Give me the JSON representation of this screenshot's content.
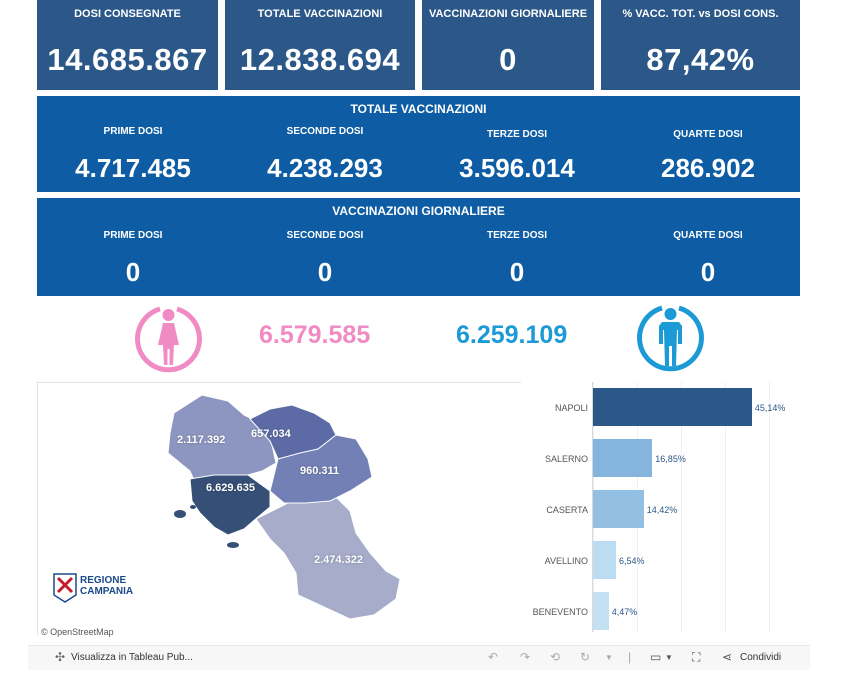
{
  "tiles": [
    {
      "label": "DOSI  CONSEGNATE",
      "value": "14.685.867"
    },
    {
      "label": "TOTALE VACCINAZIONI",
      "value": "12.838.694"
    },
    {
      "label": "VACCINAZIONI GIORNALIERE",
      "value": "0"
    },
    {
      "label": "% VACC. TOT. vs DOSI CONS.",
      "value": "87,42%"
    }
  ],
  "totale": {
    "title": "TOTALE VACCINAZIONI",
    "cols": [
      {
        "label": "PRIME DOSI",
        "value": "4.717.485"
      },
      {
        "label": "SECONDE DOSI",
        "value": "4.238.293"
      },
      {
        "label": "TERZE DOSI",
        "value": "3.596.014"
      },
      {
        "label": "QUARTE DOSI",
        "value": "286.902"
      }
    ]
  },
  "giornaliere": {
    "title": "VACCINAZIONI GIORNALIERE",
    "cols": [
      {
        "label": "PRIME DOSI",
        "value": "0"
      },
      {
        "label": "SECONDE DOSI",
        "value": "0"
      },
      {
        "label": "TERZE DOSI",
        "value": "0"
      },
      {
        "label": "QUARTE DOSI",
        "value": "0"
      }
    ]
  },
  "gender": {
    "female_value": "6.579.585",
    "male_value": "6.259.109",
    "female_color": "#f08bc4",
    "male_color": "#1b9ad6",
    "female_icon": "female-icon",
    "male_icon": "male-icon"
  },
  "map": {
    "regions": [
      {
        "name": "caserta",
        "value": "2.117.392"
      },
      {
        "name": "benevento",
        "value": "657.034"
      },
      {
        "name": "avellino",
        "value": "960.311"
      },
      {
        "name": "napoli",
        "value": "6.629.635"
      },
      {
        "name": "salerno",
        "value": "2.474.322"
      }
    ],
    "logo_line1": "REGIONE",
    "logo_line2": "CAMPANIA",
    "attribution": "© OpenStreetMap"
  },
  "chart_data": {
    "type": "bar",
    "orientation": "horizontal",
    "categories": [
      "NAPOLI",
      "SALERNO",
      "CASERTA",
      "AVELLINO",
      "BENEVENTO"
    ],
    "values": [
      45.14,
      16.85,
      14.42,
      6.54,
      4.47
    ],
    "labels": [
      "45,14%",
      "16,85%",
      "14,42%",
      "6,54%",
      "4,47%"
    ],
    "colors": [
      "#2b5888",
      "#85b5df",
      "#93bfe2",
      "#bcdcf1",
      "#c4e1f3"
    ],
    "xlim": [
      0,
      50
    ]
  },
  "toolbar": {
    "view_label": "Visualizza in Tableau Pub...",
    "share_label": "Condividi"
  }
}
